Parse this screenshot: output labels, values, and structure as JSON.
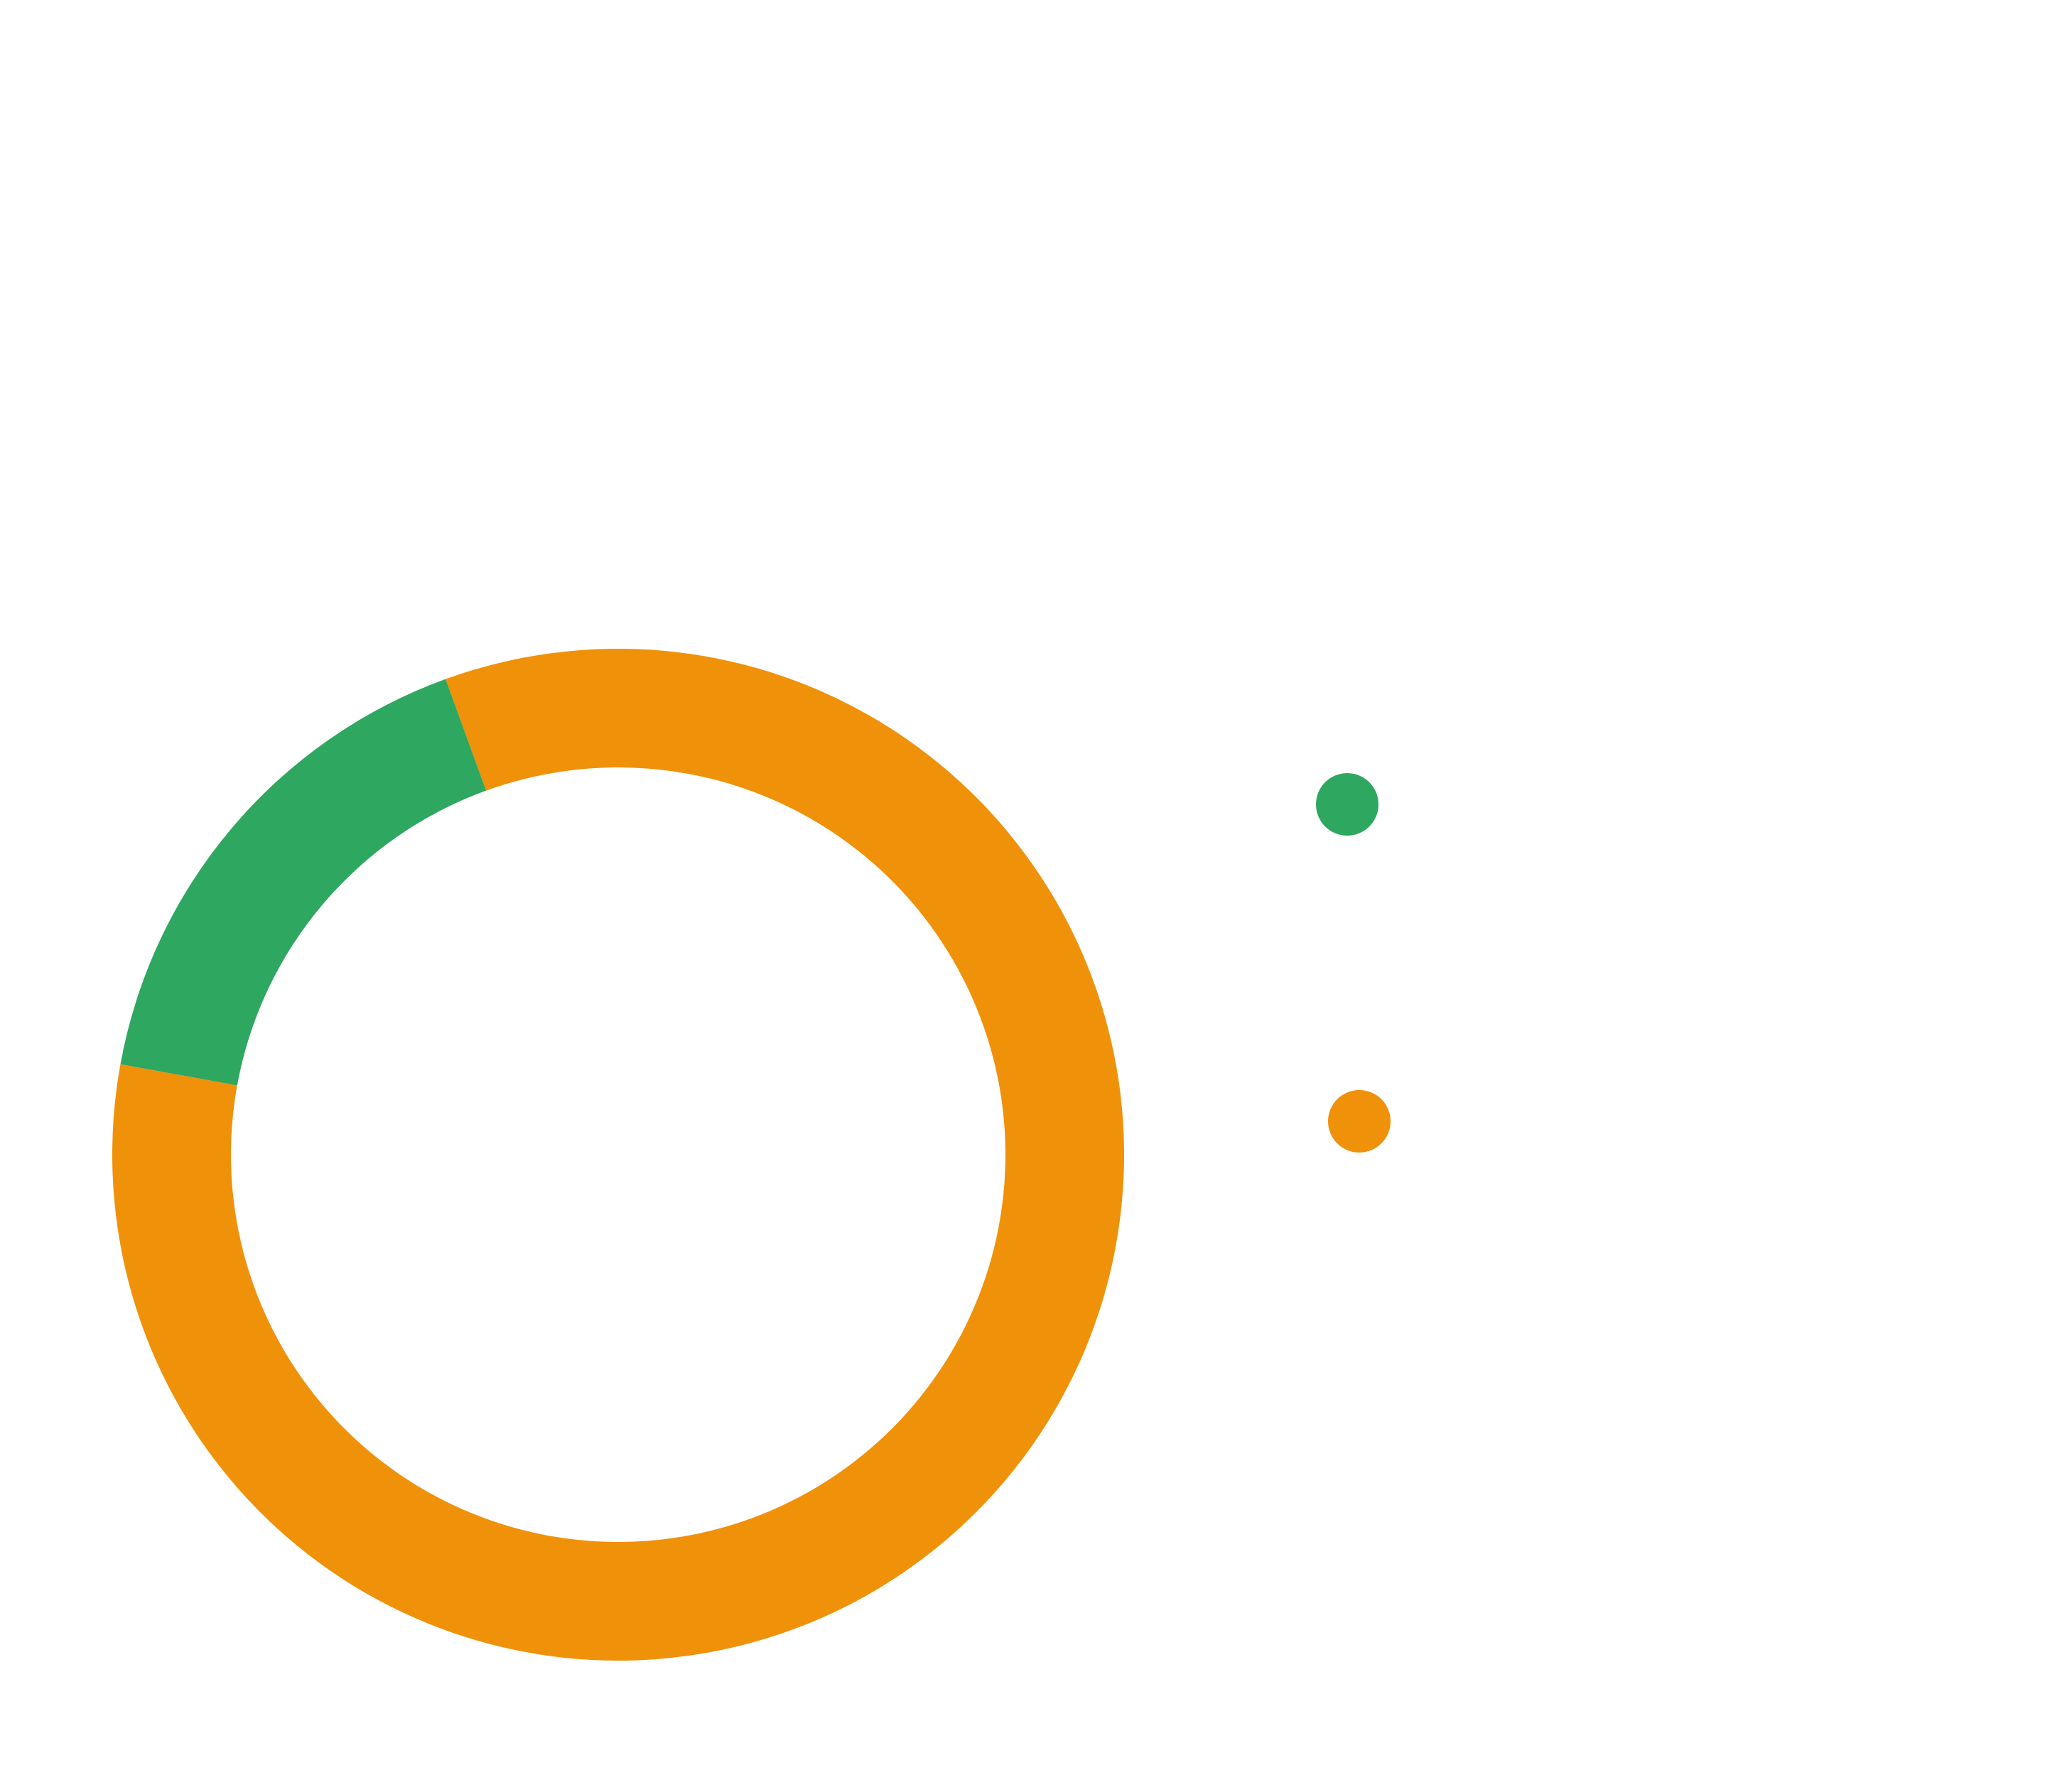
{
  "chart_data": {
    "type": "pie",
    "style": "donut",
    "title": "",
    "legend_position": "right",
    "slices": [
      {
        "name": "",
        "value": 16.6,
        "color": "#2EA760"
      },
      {
        "name": "",
        "value": 83.4,
        "color": "#F0910A"
      }
    ]
  },
  "legend": {
    "items": [
      {
        "label": "",
        "color": "#2EA760",
        "icon": "circle-marker"
      },
      {
        "label": "",
        "color": "#F0910A",
        "icon": "circle-marker"
      }
    ]
  }
}
